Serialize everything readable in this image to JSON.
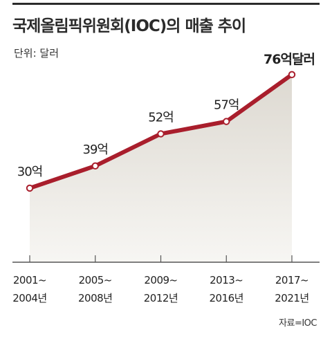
{
  "title": "국제올림픽위원회(IOC)의 매출 추이",
  "unit_label": "단위: 달러",
  "source": "자료=IOC",
  "chart_data": {
    "type": "area",
    "categories": [
      [
        "2001~",
        "2004년"
      ],
      [
        "2005~",
        "2008년"
      ],
      [
        "2009~",
        "2012년"
      ],
      [
        "2013~",
        "2016년"
      ],
      [
        "2017~",
        "2021년"
      ]
    ],
    "values": [
      30,
      39,
      52,
      57,
      76
    ],
    "value_labels": [
      "30억",
      "39억",
      "52억",
      "57억",
      "76억달러"
    ],
    "ylim": [
      0,
      81
    ],
    "grid": false,
    "colors": {
      "line": "#a91e2c",
      "fill_top": "#ddd9d1",
      "fill_bottom": "#f7f6f3",
      "marker_fill": "#ffffff"
    }
  }
}
